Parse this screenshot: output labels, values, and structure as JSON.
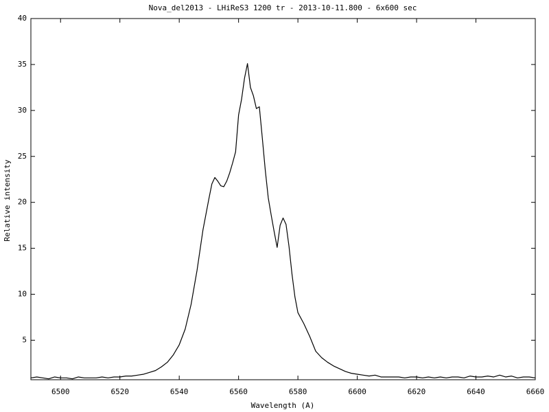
{
  "chart_data": {
    "type": "line",
    "title": "Nova_del2013 - LHiReS3 1200 tr  - 2013-10-11.800 - 6x600 sec",
    "x_label": "Wavelength (A)",
    "y_label": "Relative intensity",
    "xlim": [
      6490,
      6660
    ],
    "ylim": [
      0.7,
      40
    ],
    "xticks": [
      6500,
      6520,
      6540,
      6560,
      6580,
      6600,
      6620,
      6640,
      6660
    ],
    "yticks": [
      5,
      10,
      15,
      20,
      25,
      30,
      35,
      40
    ],
    "color": "#000000",
    "x": [
      6490,
      6492,
      6494,
      6496,
      6498,
      6500,
      6502,
      6504,
      6506,
      6508,
      6510,
      6512,
      6514,
      6516,
      6518,
      6520,
      6522,
      6524,
      6526,
      6528,
      6530,
      6532,
      6534,
      6536,
      6538,
      6540,
      6542,
      6544,
      6546,
      6548,
      6550,
      6551,
      6552,
      6553,
      6554,
      6555,
      6556,
      6557,
      6558,
      6559,
      6560,
      6561,
      6562,
      6563,
      6564,
      6565,
      6566,
      6567,
      6568,
      6569,
      6570,
      6571,
      6572,
      6573,
      6574,
      6575,
      6576,
      6577,
      6578,
      6579,
      6580,
      6582,
      6584,
      6586,
      6588,
      6590,
      6592,
      6594,
      6596,
      6598,
      6600,
      6602,
      6604,
      6606,
      6608,
      6610,
      6612,
      6614,
      6616,
      6618,
      6620,
      6622,
      6624,
      6626,
      6628,
      6630,
      6632,
      6634,
      6636,
      6638,
      6640,
      6642,
      6644,
      6646,
      6648,
      6650,
      6652,
      6654,
      6656,
      6658,
      6660
    ],
    "values": [
      0.9,
      1.0,
      0.9,
      0.8,
      1.0,
      0.9,
      0.9,
      0.8,
      1.0,
      0.9,
      0.9,
      0.9,
      1.0,
      0.9,
      1.0,
      1.0,
      1.1,
      1.1,
      1.2,
      1.3,
      1.5,
      1.7,
      2.1,
      2.6,
      3.4,
      4.5,
      6.2,
      8.9,
      12.6,
      17.0,
      20.4,
      22.0,
      22.7,
      22.3,
      21.8,
      21.7,
      22.3,
      23.2,
      24.3,
      25.5,
      29.5,
      31.2,
      33.5,
      35.1,
      32.5,
      31.6,
      30.2,
      30.4,
      27.0,
      23.5,
      20.5,
      18.6,
      16.8,
      15.1,
      17.5,
      18.3,
      17.6,
      15.2,
      12.2,
      9.7,
      8.0,
      6.8,
      5.4,
      3.8,
      3.1,
      2.6,
      2.2,
      1.9,
      1.6,
      1.4,
      1.3,
      1.2,
      1.1,
      1.2,
      1.0,
      1.0,
      1.0,
      1.0,
      0.9,
      1.0,
      1.0,
      0.9,
      1.0,
      0.9,
      1.0,
      0.9,
      1.0,
      1.0,
      0.9,
      1.1,
      1.0,
      1.0,
      1.1,
      1.0,
      1.2,
      1.0,
      1.1,
      0.9,
      1.0,
      1.0,
      0.9
    ]
  }
}
